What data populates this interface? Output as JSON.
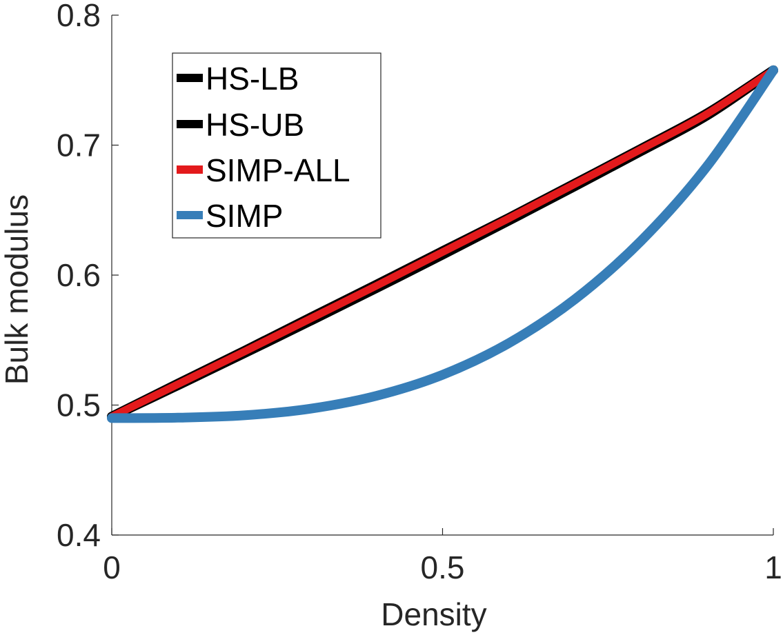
{
  "chart_data": {
    "type": "line",
    "title": "",
    "xlabel": "Density",
    "ylabel": "Bulk modulus",
    "xlim": [
      0,
      1
    ],
    "ylim": [
      0.4,
      0.8
    ],
    "xticks": [
      0,
      0.5,
      1
    ],
    "xtick_labels": [
      "0",
      "0.5",
      "1"
    ],
    "yticks": [
      0.4,
      0.5,
      0.6,
      0.7,
      0.8
    ],
    "ytick_labels": [
      "0.4",
      "0.5",
      "0.6",
      "0.7",
      "0.8"
    ],
    "grid": false,
    "legend_position": "top-left",
    "x": [
      0,
      0.1,
      0.2,
      0.3,
      0.4,
      0.5,
      0.6,
      0.7,
      0.8,
      0.9,
      1.0
    ],
    "series": [
      {
        "name": "HS-LB",
        "color": "#000000",
        "values": [
          0.4911,
          0.5152,
          0.5398,
          0.5647,
          0.59,
          0.6157,
          0.6419,
          0.6684,
          0.6954,
          0.7229,
          0.7576
        ]
      },
      {
        "name": "HS-UB",
        "color": "#000000",
        "values": [
          0.4911,
          0.5165,
          0.5416,
          0.5672,
          0.5926,
          0.6184,
          0.644,
          0.6705,
          0.6972,
          0.7245,
          0.7576
        ]
      },
      {
        "name": "SIMP-ALL",
        "color": "#e31a1c",
        "values": [
          0.4911,
          0.516,
          0.541,
          0.5664,
          0.5918,
          0.6177,
          0.6436,
          0.6701,
          0.6968,
          0.7241,
          0.7576
        ]
      },
      {
        "name": "SIMP",
        "color": "#377eb8",
        "values": [
          0.49,
          0.4903,
          0.4921,
          0.4972,
          0.5071,
          0.5233,
          0.5476,
          0.5814,
          0.6263,
          0.6839,
          0.7576
        ]
      }
    ]
  }
}
